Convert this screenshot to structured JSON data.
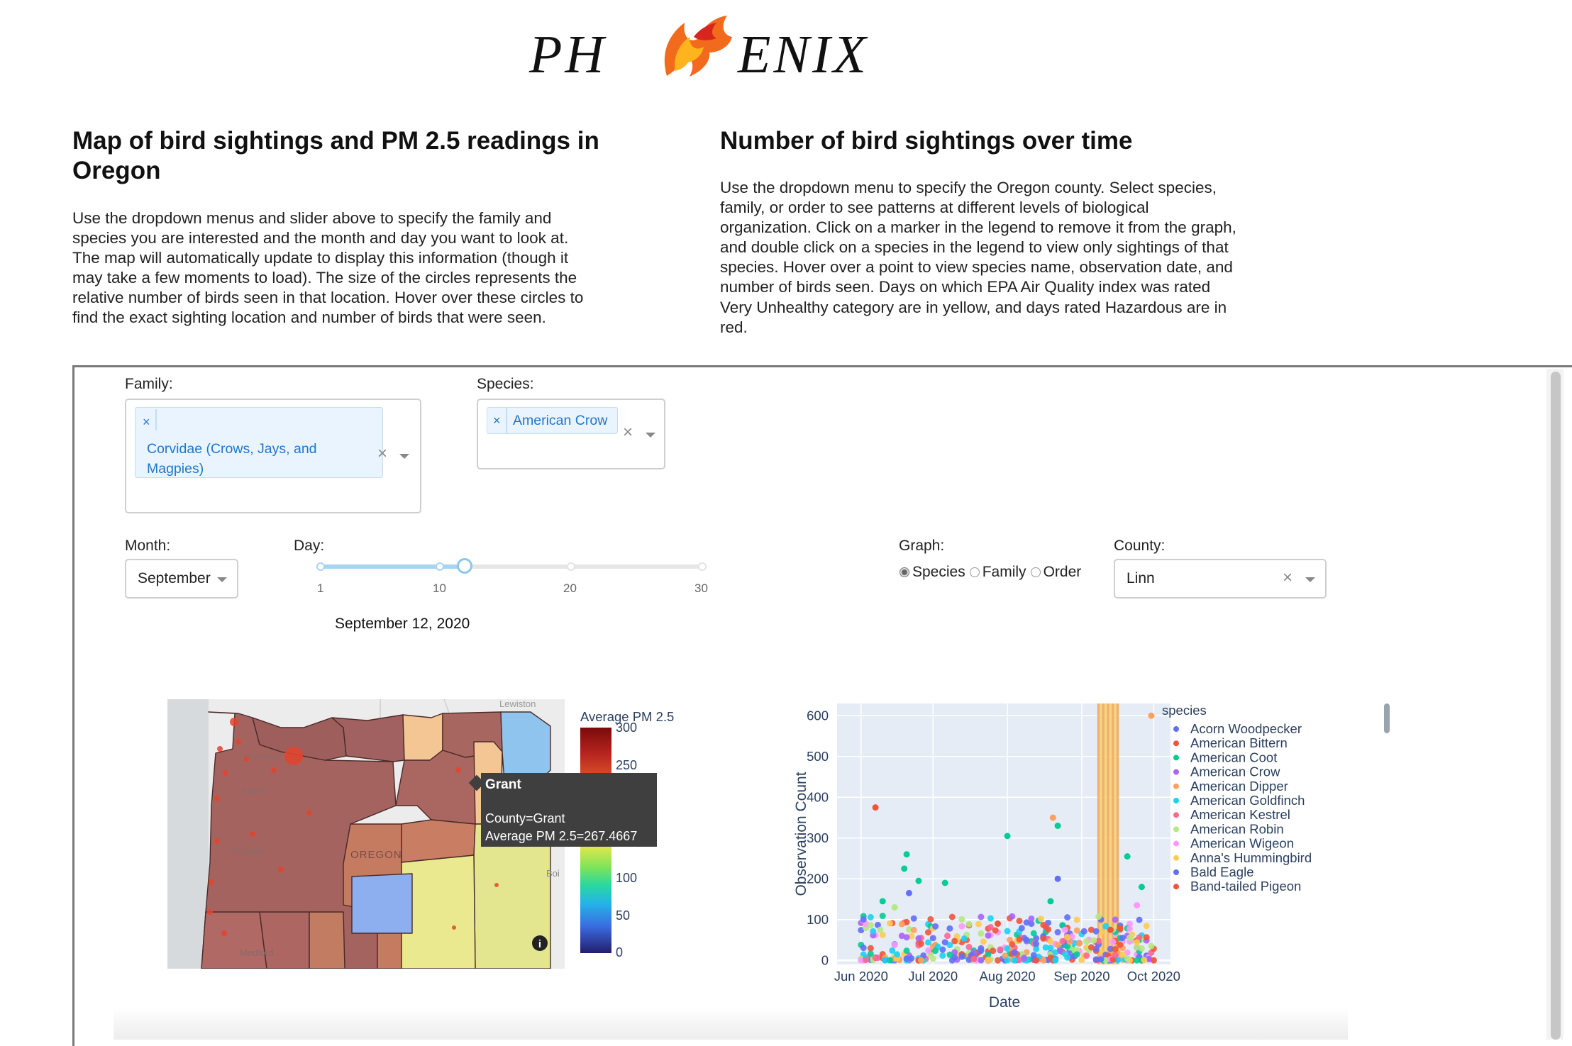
{
  "logo": {
    "text_left": "PH",
    "text_right": "ENIX"
  },
  "map_section": {
    "title": "Map of bird sightings and PM 2.5 readings in Oregon",
    "description": "Use the dropdown menus and slider above to specify the family and species you are interested and the month and day you want to look at. The map will automatically update to display this information (though it may take a few moments to load). The size of the circles represents the relative number of birds seen in that location. Hover over these circles to find the exact sighting location and number of birds that were seen."
  },
  "chart_section": {
    "title": "Number of bird sightings over time",
    "description": "Use the dropdown menu to specify the Oregon county. Select species, family, or order to see patterns at different levels of biological organization. Click on a marker in the legend to remove it from the graph, and double click on a species in the legend to view only sightings of that species. Hover over a point to view species name, observation date, and number of birds seen. Days on which EPA Air Quality index was rated Very Unhealthy category are in yellow, and days rated Hazardous are in red."
  },
  "controls": {
    "family": {
      "label": "Family:",
      "chip_lines": [
        "Corvidae (Crows, Jays, and",
        "Magpies)"
      ],
      "chip_remove": "×",
      "clear": "×"
    },
    "species": {
      "label": "Species:",
      "chip": "American Crow",
      "chip_remove": "×",
      "clear": "×"
    },
    "month": {
      "label": "Month:",
      "value": "September"
    },
    "day": {
      "label": "Day:",
      "ticks": [
        "1",
        "10",
        "20",
        "30"
      ],
      "min": 1,
      "max": 30,
      "value": 12,
      "date_text": "September 12, 2020"
    },
    "graph": {
      "label": "Graph:",
      "options": [
        "Species",
        "Family",
        "Order"
      ],
      "selected": "Species"
    },
    "county": {
      "label": "County:",
      "value": "Linn",
      "clear": "×"
    }
  },
  "map": {
    "place_labels": [
      "Lewiston",
      "Portland",
      "Salem",
      "Eugene",
      "OREGON",
      "Medford",
      "Boi"
    ],
    "colorbar": {
      "title": "Average PM 2.5",
      "ticks": [
        "300",
        "250",
        "100",
        "50",
        "0"
      ],
      "min": 0,
      "max": 300
    },
    "tooltip": {
      "title": "Grant",
      "line1": "County=Grant",
      "line2": "Average PM 2.5=267.4667"
    },
    "info_icon": "i"
  },
  "chart_data": {
    "type": "scatter",
    "xlabel": "Date",
    "ylabel": "Observation Count",
    "x_ticks": [
      "Jun 2020",
      "Jul 2020",
      "Aug 2020",
      "Sep 2020",
      "Oct 2020"
    ],
    "y_ticks": [
      "0",
      "100",
      "200",
      "300",
      "400",
      "500",
      "600"
    ],
    "ylim": [
      -10,
      630
    ],
    "xlim": [
      "2020-05-22",
      "2020-10-08"
    ],
    "grid": true,
    "legend": {
      "title": "species",
      "placement": "right",
      "entries": [
        {
          "name": "Acorn Woodpecker",
          "color": "#636efa"
        },
        {
          "name": "American Bittern",
          "color": "#ef553b"
        },
        {
          "name": "American Coot",
          "color": "#00cc96"
        },
        {
          "name": "American Crow",
          "color": "#ab63fa"
        },
        {
          "name": "American Dipper",
          "color": "#ffa15a"
        },
        {
          "name": "American Goldfinch",
          "color": "#19d3f3"
        },
        {
          "name": "American Kestrel",
          "color": "#ff6692"
        },
        {
          "name": "American Robin",
          "color": "#b6e880"
        },
        {
          "name": "American Wigeon",
          "color": "#ff97ff"
        },
        {
          "name": "Anna's Hummingbird",
          "color": "#fecb52"
        },
        {
          "name": "Bald Eagle",
          "color": "#636efa"
        },
        {
          "name": "Band-tailed Pigeon",
          "color": "#ef553b"
        }
      ]
    },
    "hazard_band": {
      "start": "2020-09-08",
      "end": "2020-09-16"
    },
    "highlighted_points": [
      {
        "x": "2020-06-07",
        "y": 375,
        "color": "#ef553b"
      },
      {
        "x": "2020-06-10",
        "y": 145,
        "color": "#00cc96"
      },
      {
        "x": "2020-06-20",
        "y": 260,
        "color": "#00cc96"
      },
      {
        "x": "2020-06-19",
        "y": 225,
        "color": "#00cc96"
      },
      {
        "x": "2020-06-21",
        "y": 165,
        "color": "#636efa"
      },
      {
        "x": "2020-06-25",
        "y": 195,
        "color": "#00cc96"
      },
      {
        "x": "2020-07-06",
        "y": 190,
        "color": "#00cc96"
      },
      {
        "x": "2020-08-01",
        "y": 305,
        "color": "#00cc96"
      },
      {
        "x": "2020-08-20",
        "y": 350,
        "color": "#ffa15a"
      },
      {
        "x": "2020-08-22",
        "y": 330,
        "color": "#00cc96"
      },
      {
        "x": "2020-08-22",
        "y": 200,
        "color": "#636efa"
      },
      {
        "x": "2020-09-20",
        "y": 255,
        "color": "#00cc96"
      },
      {
        "x": "2020-09-26",
        "y": 180,
        "color": "#00cc96"
      },
      {
        "x": "2020-09-24",
        "y": 135,
        "color": "#ff97ff"
      },
      {
        "x": "2020-09-30",
        "y": 600,
        "color": "#ffa15a"
      },
      {
        "x": "2020-06-15",
        "y": 130,
        "color": "#b6e880"
      },
      {
        "x": "2020-07-28",
        "y": 90,
        "color": "#ef553b"
      },
      {
        "x": "2020-08-19",
        "y": 145,
        "color": "#00cc96"
      },
      {
        "x": "2020-09-13",
        "y": 75,
        "color": "#ef553b"
      }
    ]
  }
}
